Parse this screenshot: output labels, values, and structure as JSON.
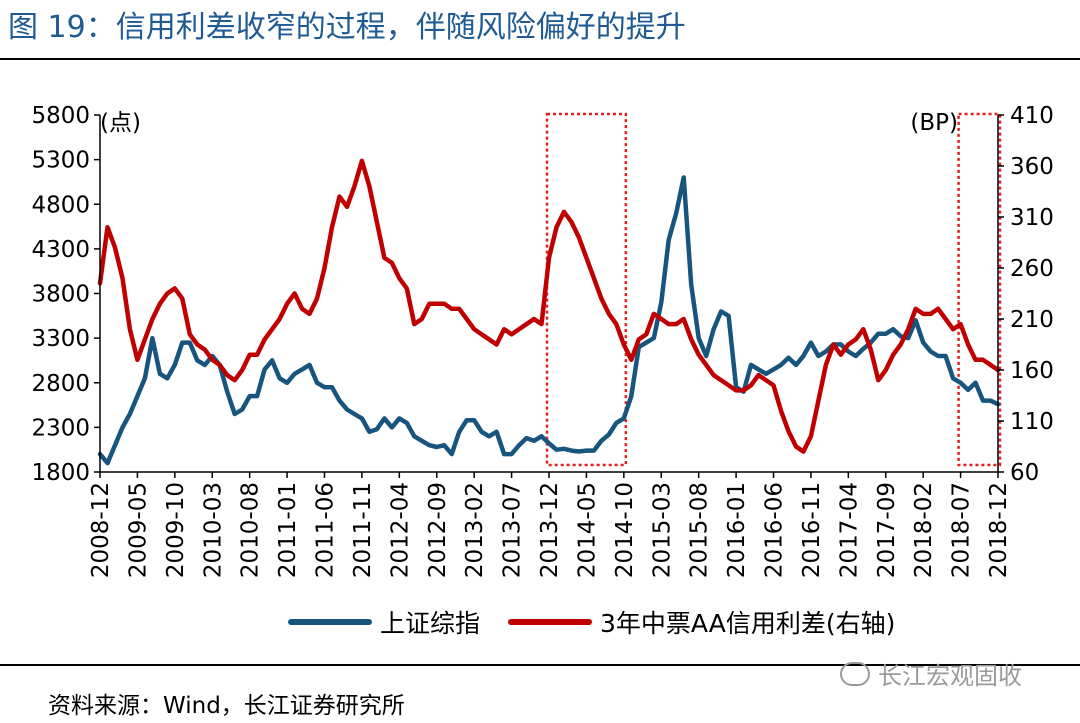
{
  "title": "图 19：信用利差收窄的过程，伴随风险偏好的提升",
  "source": "资料来源：Wind，长江证券研究所",
  "watermark": "长江宏观固收",
  "colors": {
    "sse": "#17557f",
    "spread": "#c00000",
    "box": "#e02020",
    "title": "#1f5a93"
  },
  "chart_data": {
    "type": "line",
    "title": "",
    "left_axis_unit": "(点)",
    "right_axis_unit": "(BP)",
    "left_axis": {
      "ylim": [
        1800,
        5800
      ],
      "ticks": [
        1800,
        2300,
        2800,
        3300,
        3800,
        4300,
        4800,
        5300,
        5800
      ]
    },
    "right_axis": {
      "ylim": [
        60,
        410
      ],
      "ticks": [
        60,
        110,
        160,
        210,
        260,
        310,
        360,
        410
      ]
    },
    "x_ticks": [
      "2008-12",
      "2009-05",
      "2009-10",
      "2010-03",
      "2010-08",
      "2011-01",
      "2011-06",
      "2011-11",
      "2012-04",
      "2012-09",
      "2013-02",
      "2013-07",
      "2013-12",
      "2014-05",
      "2014-10",
      "2015-03",
      "2015-08",
      "2016-01",
      "2016-06",
      "2016-11",
      "2017-04",
      "2017-09",
      "2018-02",
      "2018-07",
      "2018-12"
    ],
    "highlight_boxes": [
      {
        "from": "2013-12",
        "to": "2014-10"
      },
      {
        "from": "2018-07",
        "to": "2018-12"
      }
    ],
    "series": [
      {
        "name": "上证综指",
        "axis": "left",
        "points": [
          [
            "2008-12",
            2000
          ],
          [
            "2009-01",
            1900
          ],
          [
            "2009-02",
            2100
          ],
          [
            "2009-03",
            2300
          ],
          [
            "2009-04",
            2450
          ],
          [
            "2009-05",
            2650
          ],
          [
            "2009-06",
            2850
          ],
          [
            "2009-07",
            3300
          ],
          [
            "2009-08",
            2900
          ],
          [
            "2009-09",
            2850
          ],
          [
            "2009-10",
            3000
          ],
          [
            "2009-11",
            3250
          ],
          [
            "2009-12",
            3250
          ],
          [
            "2010-01",
            3050
          ],
          [
            "2010-02",
            3000
          ],
          [
            "2010-03",
            3100
          ],
          [
            "2010-04",
            3000
          ],
          [
            "2010-05",
            2700
          ],
          [
            "2010-06",
            2450
          ],
          [
            "2010-07",
            2500
          ],
          [
            "2010-08",
            2650
          ],
          [
            "2010-09",
            2650
          ],
          [
            "2010-10",
            2950
          ],
          [
            "2010-11",
            3050
          ],
          [
            "2010-12",
            2850
          ],
          [
            "2011-01",
            2800
          ],
          [
            "2011-02",
            2900
          ],
          [
            "2011-03",
            2950
          ],
          [
            "2011-04",
            3000
          ],
          [
            "2011-05",
            2800
          ],
          [
            "2011-06",
            2750
          ],
          [
            "2011-07",
            2750
          ],
          [
            "2011-08",
            2600
          ],
          [
            "2011-09",
            2500
          ],
          [
            "2011-10",
            2450
          ],
          [
            "2011-11",
            2400
          ],
          [
            "2011-12",
            2250
          ],
          [
            "2012-01",
            2280
          ],
          [
            "2012-02",
            2400
          ],
          [
            "2012-03",
            2300
          ],
          [
            "2012-04",
            2400
          ],
          [
            "2012-05",
            2350
          ],
          [
            "2012-06",
            2200
          ],
          [
            "2012-07",
            2150
          ],
          [
            "2012-08",
            2100
          ],
          [
            "2012-09",
            2080
          ],
          [
            "2012-10",
            2100
          ],
          [
            "2012-11",
            2000
          ],
          [
            "2012-12",
            2250
          ],
          [
            "2013-01",
            2380
          ],
          [
            "2013-02",
            2380
          ],
          [
            "2013-03",
            2250
          ],
          [
            "2013-04",
            2200
          ],
          [
            "2013-05",
            2250
          ],
          [
            "2013-06",
            2000
          ],
          [
            "2013-07",
            2000
          ],
          [
            "2013-08",
            2100
          ],
          [
            "2013-09",
            2180
          ],
          [
            "2013-10",
            2150
          ],
          [
            "2013-11",
            2200
          ],
          [
            "2013-12",
            2120
          ],
          [
            "2014-01",
            2050
          ],
          [
            "2014-02",
            2060
          ],
          [
            "2014-03",
            2040
          ],
          [
            "2014-04",
            2030
          ],
          [
            "2014-05",
            2040
          ],
          [
            "2014-06",
            2040
          ],
          [
            "2014-07",
            2150
          ],
          [
            "2014-08",
            2220
          ],
          [
            "2014-09",
            2350
          ],
          [
            "2014-10",
            2400
          ],
          [
            "2014-11",
            2650
          ],
          [
            "2014-12",
            3200
          ],
          [
            "2015-01",
            3250
          ],
          [
            "2015-02",
            3300
          ],
          [
            "2015-03",
            3700
          ],
          [
            "2015-04",
            4400
          ],
          [
            "2015-05",
            4700
          ],
          [
            "2015-06",
            5100
          ],
          [
            "2015-07",
            3900
          ],
          [
            "2015-08",
            3300
          ],
          [
            "2015-09",
            3100
          ],
          [
            "2015-10",
            3400
          ],
          [
            "2015-11",
            3600
          ],
          [
            "2015-12",
            3550
          ],
          [
            "2016-01",
            2750
          ],
          [
            "2016-02",
            2700
          ],
          [
            "2016-03",
            3000
          ],
          [
            "2016-04",
            2950
          ],
          [
            "2016-05",
            2900
          ],
          [
            "2016-06",
            2950
          ],
          [
            "2016-07",
            3000
          ],
          [
            "2016-08",
            3080
          ],
          [
            "2016-09",
            3000
          ],
          [
            "2016-10",
            3100
          ],
          [
            "2016-11",
            3250
          ],
          [
            "2016-12",
            3100
          ],
          [
            "2017-01",
            3150
          ],
          [
            "2017-02",
            3230
          ],
          [
            "2017-03",
            3230
          ],
          [
            "2017-04",
            3150
          ],
          [
            "2017-05",
            3100
          ],
          [
            "2017-06",
            3180
          ],
          [
            "2017-07",
            3250
          ],
          [
            "2017-08",
            3350
          ],
          [
            "2017-09",
            3350
          ],
          [
            "2017-10",
            3400
          ],
          [
            "2017-11",
            3320
          ],
          [
            "2017-12",
            3300
          ],
          [
            "2018-01",
            3500
          ],
          [
            "2018-02",
            3250
          ],
          [
            "2018-03",
            3150
          ],
          [
            "2018-04",
            3100
          ],
          [
            "2018-05",
            3100
          ],
          [
            "2018-06",
            2850
          ],
          [
            "2018-07",
            2800
          ],
          [
            "2018-08",
            2720
          ],
          [
            "2018-09",
            2800
          ],
          [
            "2018-10",
            2600
          ],
          [
            "2018-11",
            2600
          ],
          [
            "2018-12",
            2560
          ]
        ]
      },
      {
        "name": "3年中票AA信用利差(右轴)",
        "axis": "right",
        "points": [
          [
            "2008-12",
            245
          ],
          [
            "2009-01",
            300
          ],
          [
            "2009-02",
            280
          ],
          [
            "2009-03",
            250
          ],
          [
            "2009-04",
            200
          ],
          [
            "2009-05",
            170
          ],
          [
            "2009-06",
            190
          ],
          [
            "2009-07",
            210
          ],
          [
            "2009-08",
            225
          ],
          [
            "2009-09",
            235
          ],
          [
            "2009-10",
            240
          ],
          [
            "2009-11",
            230
          ],
          [
            "2009-12",
            195
          ],
          [
            "2010-01",
            185
          ],
          [
            "2010-02",
            180
          ],
          [
            "2010-03",
            170
          ],
          [
            "2010-04",
            165
          ],
          [
            "2010-05",
            155
          ],
          [
            "2010-06",
            150
          ],
          [
            "2010-07",
            160
          ],
          [
            "2010-08",
            175
          ],
          [
            "2010-09",
            175
          ],
          [
            "2010-10",
            190
          ],
          [
            "2010-11",
            200
          ],
          [
            "2010-12",
            210
          ],
          [
            "2011-01",
            225
          ],
          [
            "2011-02",
            235
          ],
          [
            "2011-03",
            220
          ],
          [
            "2011-04",
            215
          ],
          [
            "2011-05",
            230
          ],
          [
            "2011-06",
            260
          ],
          [
            "2011-07",
            300
          ],
          [
            "2011-08",
            330
          ],
          [
            "2011-09",
            320
          ],
          [
            "2011-10",
            340
          ],
          [
            "2011-11",
            365
          ],
          [
            "2011-12",
            340
          ],
          [
            "2012-01",
            305
          ],
          [
            "2012-02",
            270
          ],
          [
            "2012-03",
            265
          ],
          [
            "2012-04",
            250
          ],
          [
            "2012-05",
            240
          ],
          [
            "2012-06",
            205
          ],
          [
            "2012-07",
            210
          ],
          [
            "2012-08",
            225
          ],
          [
            "2012-09",
            225
          ],
          [
            "2012-10",
            225
          ],
          [
            "2012-11",
            220
          ],
          [
            "2012-12",
            220
          ],
          [
            "2013-01",
            210
          ],
          [
            "2013-02",
            200
          ],
          [
            "2013-03",
            195
          ],
          [
            "2013-04",
            190
          ],
          [
            "2013-05",
            185
          ],
          [
            "2013-06",
            200
          ],
          [
            "2013-07",
            195
          ],
          [
            "2013-08",
            200
          ],
          [
            "2013-09",
            205
          ],
          [
            "2013-10",
            210
          ],
          [
            "2013-11",
            205
          ],
          [
            "2013-12",
            270
          ],
          [
            "2014-01",
            300
          ],
          [
            "2014-02",
            315
          ],
          [
            "2014-03",
            305
          ],
          [
            "2014-04",
            290
          ],
          [
            "2014-05",
            270
          ],
          [
            "2014-06",
            250
          ],
          [
            "2014-07",
            230
          ],
          [
            "2014-08",
            215
          ],
          [
            "2014-09",
            205
          ],
          [
            "2014-10",
            185
          ],
          [
            "2014-11",
            170
          ],
          [
            "2014-12",
            190
          ],
          [
            "2015-01",
            195
          ],
          [
            "2015-02",
            215
          ],
          [
            "2015-03",
            210
          ],
          [
            "2015-04",
            205
          ],
          [
            "2015-05",
            205
          ],
          [
            "2015-06",
            210
          ],
          [
            "2015-07",
            190
          ],
          [
            "2015-08",
            175
          ],
          [
            "2015-09",
            165
          ],
          [
            "2015-10",
            155
          ],
          [
            "2015-11",
            150
          ],
          [
            "2015-12",
            145
          ],
          [
            "2016-01",
            140
          ],
          [
            "2016-02",
            140
          ],
          [
            "2016-03",
            145
          ],
          [
            "2016-04",
            155
          ],
          [
            "2016-05",
            150
          ],
          [
            "2016-06",
            145
          ],
          [
            "2016-07",
            120
          ],
          [
            "2016-08",
            100
          ],
          [
            "2016-09",
            85
          ],
          [
            "2016-10",
            80
          ],
          [
            "2016-11",
            95
          ],
          [
            "2016-12",
            130
          ],
          [
            "2017-01",
            165
          ],
          [
            "2017-02",
            185
          ],
          [
            "2017-03",
            175
          ],
          [
            "2017-04",
            185
          ],
          [
            "2017-05",
            190
          ],
          [
            "2017-06",
            200
          ],
          [
            "2017-07",
            180
          ],
          [
            "2017-08",
            150
          ],
          [
            "2017-09",
            160
          ],
          [
            "2017-10",
            175
          ],
          [
            "2017-11",
            185
          ],
          [
            "2017-12",
            200
          ],
          [
            "2018-01",
            220
          ],
          [
            "2018-02",
            215
          ],
          [
            "2018-03",
            215
          ],
          [
            "2018-04",
            220
          ],
          [
            "2018-05",
            210
          ],
          [
            "2018-06",
            200
          ],
          [
            "2018-07",
            205
          ],
          [
            "2018-08",
            185
          ],
          [
            "2018-09",
            170
          ],
          [
            "2018-10",
            170
          ],
          [
            "2018-11",
            165
          ],
          [
            "2018-12",
            160
          ]
        ]
      }
    ]
  }
}
